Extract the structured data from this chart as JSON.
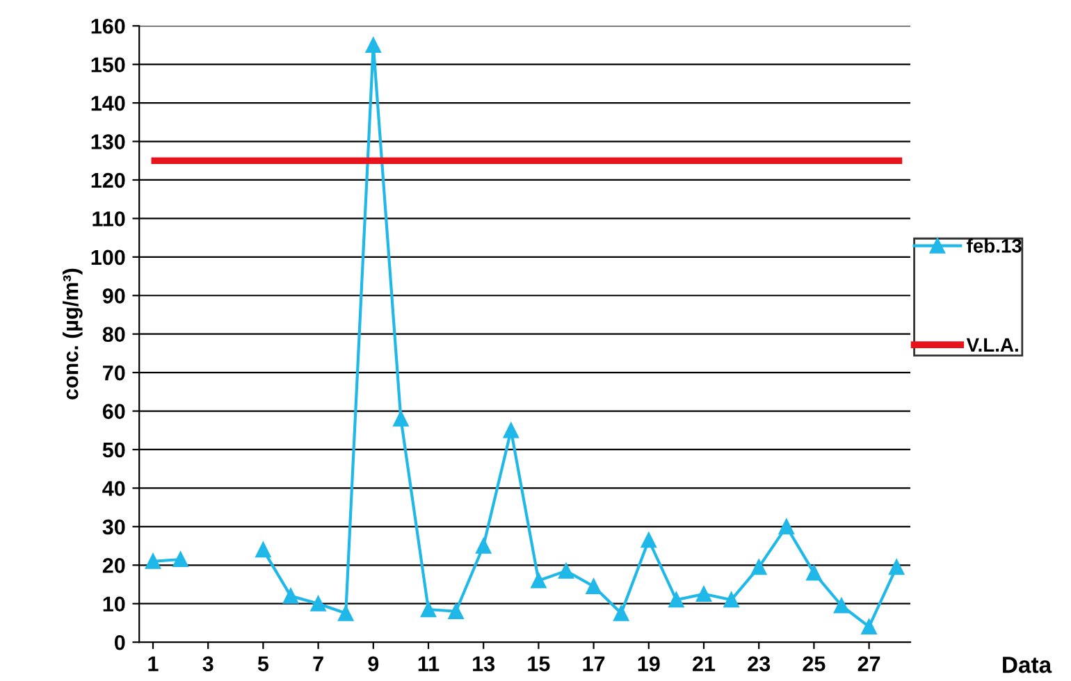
{
  "chart_data": {
    "type": "line",
    "ylabel": "conc. (µg/m³)",
    "xlabel": "Data",
    "x": [
      1,
      2,
      3,
      4,
      5,
      6,
      7,
      8,
      9,
      10,
      11,
      12,
      13,
      14,
      15,
      16,
      17,
      18,
      19,
      20,
      21,
      22,
      23,
      24,
      25,
      26,
      27,
      28
    ],
    "series": [
      {
        "name": "feb.13",
        "color": "#1fb8e8",
        "values": [
          21,
          21.5,
          null,
          null,
          24,
          12,
          10,
          7.5,
          155,
          58,
          8.5,
          8,
          25,
          55,
          16,
          18.5,
          14.5,
          7.5,
          26.5,
          11,
          12.5,
          11,
          19.5,
          30,
          18,
          9.5,
          4,
          19.5
        ]
      }
    ],
    "ref_lines": [
      {
        "axis": "y",
        "value": 125,
        "label": "V.L.A.",
        "color": "#e8141c"
      }
    ],
    "xlim": [
      0.5,
      28.5
    ],
    "xticks": [
      1,
      3,
      5,
      7,
      9,
      11,
      13,
      15,
      17,
      19,
      21,
      23,
      25,
      27
    ],
    "ylim": [
      0,
      160
    ],
    "yticks": [
      0,
      10,
      20,
      30,
      40,
      50,
      60,
      70,
      80,
      90,
      100,
      110,
      120,
      130,
      140,
      150,
      160
    ],
    "grid": "y",
    "legend": "right",
    "marker": "triangle",
    "line_style": "solid"
  }
}
